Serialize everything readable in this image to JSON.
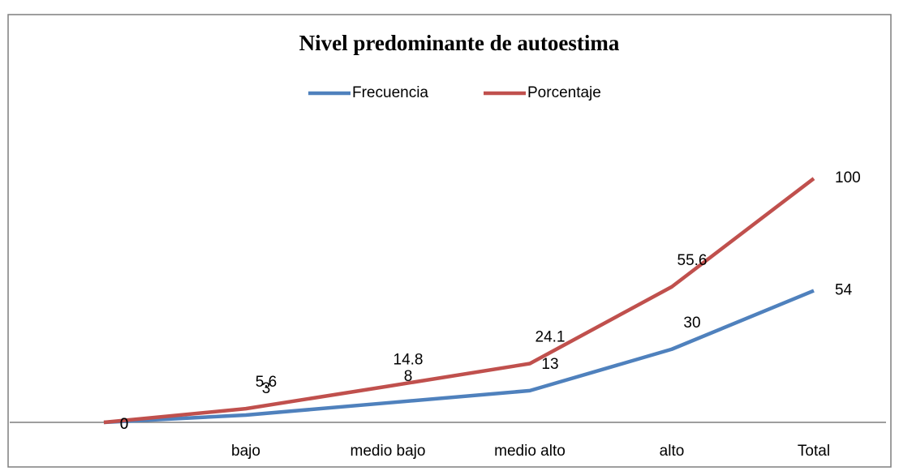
{
  "chart_data": {
    "type": "line",
    "title": "Nivel predominante de autoestima",
    "categories": [
      null,
      "bajo",
      "medio bajo",
      "medio alto",
      "alto",
      "Total"
    ],
    "series": [
      {
        "name": "Frecuencia",
        "color": "#4f81bd",
        "values": [
          0,
          3,
          8,
          13,
          30,
          54
        ]
      },
      {
        "name": "Porcentaje",
        "color": "#c0504d",
        "values": [
          0,
          5.6,
          14.8,
          24.1,
          55.6,
          100
        ]
      }
    ],
    "ylim": [
      0,
      120
    ],
    "legend": "top"
  }
}
